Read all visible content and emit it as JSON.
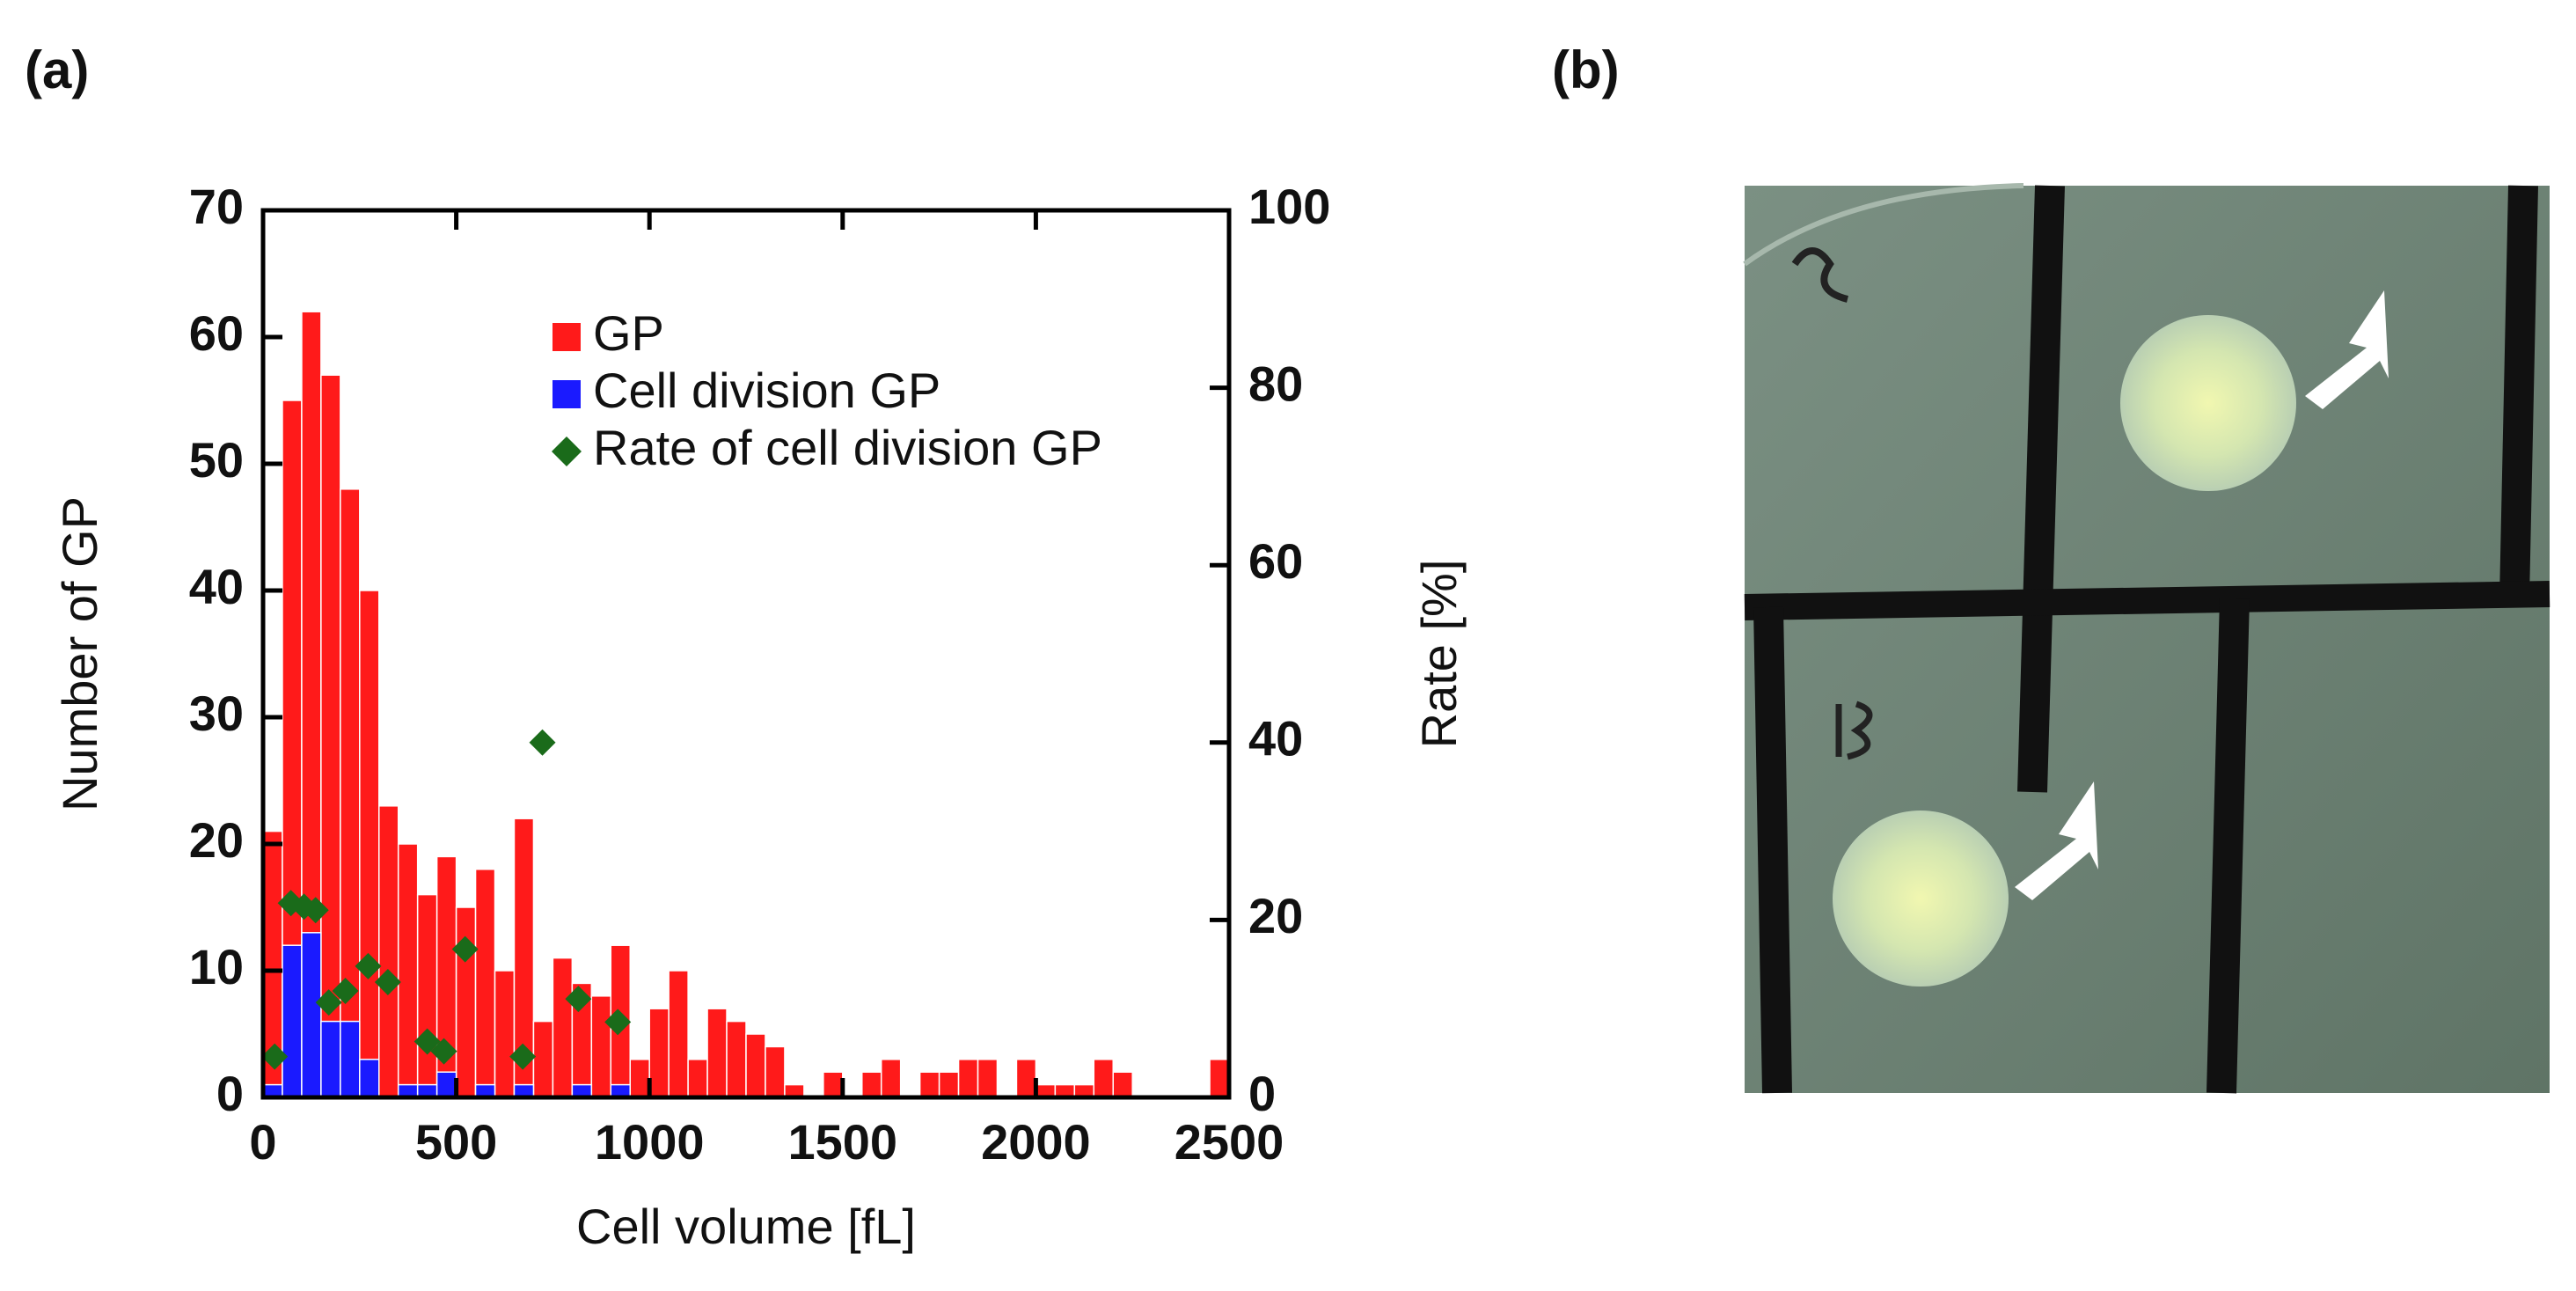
{
  "panel_labels": [
    "(a)",
    "(b)"
  ],
  "chart_data": {
    "type": "histogram",
    "xlabel": "Cell volume [fL]",
    "ylabel": "Number of GP",
    "y2label": "Rate [%]",
    "bins": [
      0,
      50,
      100,
      150,
      200,
      250,
      300,
      350,
      400,
      450,
      500,
      550,
      600,
      650,
      700,
      750,
      800,
      850,
      900,
      950,
      1000,
      1050,
      1100,
      1150,
      1200,
      1250,
      1300,
      1350,
      1400,
      1450,
      1500,
      1550,
      1600,
      1650,
      1700,
      1750,
      1800,
      1850,
      1900,
      1950,
      2000,
      2050,
      2100,
      2150,
      2200,
      2250,
      2300,
      2350,
      2400,
      2450,
      2500
    ],
    "series": [
      {
        "name": "GP",
        "color": "#ff1a1a",
        "values": [
          21,
          55,
          62,
          57,
          48,
          40,
          23,
          20,
          16,
          19,
          15,
          18,
          10,
          22,
          6,
          11,
          9,
          8,
          12,
          3,
          7,
          10,
          3,
          7,
          6,
          5,
          4,
          1,
          0,
          2,
          0,
          2,
          3,
          0,
          2,
          2,
          3,
          3,
          0,
          3,
          1,
          1,
          1,
          3,
          2,
          0,
          0,
          0,
          0,
          3
        ]
      },
      {
        "name": "Cell division GP",
        "color": "#1a1aff",
        "values": [
          1,
          12,
          13,
          6,
          6,
          3,
          0,
          1,
          1,
          2,
          0,
          1,
          0,
          1,
          0,
          0,
          1,
          0,
          1,
          0,
          0,
          0,
          0,
          0,
          0,
          0,
          0,
          0,
          0,
          0,
          0,
          0,
          0,
          0,
          0,
          0,
          0,
          0,
          0,
          0,
          0,
          0,
          0,
          0,
          0,
          0,
          0,
          0,
          0,
          0
        ]
      },
      {
        "name": "Rate of cell division GP",
        "color": "#1a6b1a",
        "axis": "y2",
        "x": [
          30,
          72,
          106,
          136,
          170,
          213,
          272,
          323,
          425,
          468,
          523,
          672,
          723,
          816,
          918
        ],
        "values": [
          4.6,
          21.9,
          21.5,
          21.1,
          10.7,
          12,
          14.8,
          13,
          6.3,
          5.2,
          16.7,
          4.6,
          40,
          11.1,
          8.5
        ]
      }
    ],
    "xlim": [
      0,
      2500
    ],
    "xticks": [
      0,
      500,
      1000,
      1500,
      2000,
      2500
    ],
    "ylim": [
      0,
      70
    ],
    "yticks": [
      0,
      10,
      20,
      30,
      40,
      50,
      60,
      70
    ],
    "y2lim": [
      0,
      100
    ],
    "y2ticks": [
      0,
      20,
      40,
      60,
      80,
      100
    ],
    "legend": "upper right"
  }
}
